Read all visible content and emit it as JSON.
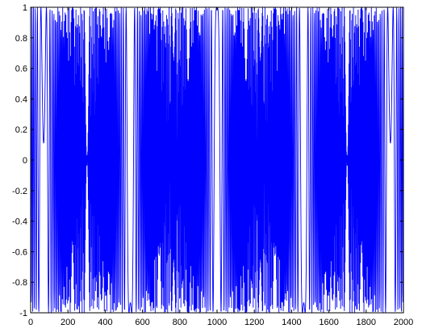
{
  "chart_data": {
    "type": "line",
    "title": "",
    "xlabel": "",
    "ylabel": "",
    "xlim": [
      0,
      2000
    ],
    "ylim": [
      -1,
      1
    ],
    "grid": false,
    "legend": "none",
    "line_color": "#0000ff",
    "x_ticks": [
      0,
      200,
      400,
      600,
      800,
      1000,
      1200,
      1400,
      1600,
      1800,
      2000
    ],
    "x_tick_labels": [
      "0",
      "200",
      "400",
      "600",
      "800",
      "1000",
      "1200",
      "1400",
      "1600",
      "1800",
      "2000"
    ],
    "y_ticks": [
      -1,
      -0.8,
      -0.6,
      -0.4,
      -0.2,
      0,
      0.2,
      0.4,
      0.6,
      0.8,
      1
    ],
    "y_tick_labels": [
      "-1",
      "-0.8",
      "-0.6",
      "-0.4",
      "-0.2",
      "0",
      "0.2",
      "0.4",
      "0.6",
      "0.8",
      "1"
    ],
    "series": [
      {
        "x_start": 1,
        "x_end": 2000,
        "count": 2000,
        "signal": "symmetric chirp, cos(pi*2.15*((n-1000)/1000)^2*1000)"
      }
    ]
  }
}
